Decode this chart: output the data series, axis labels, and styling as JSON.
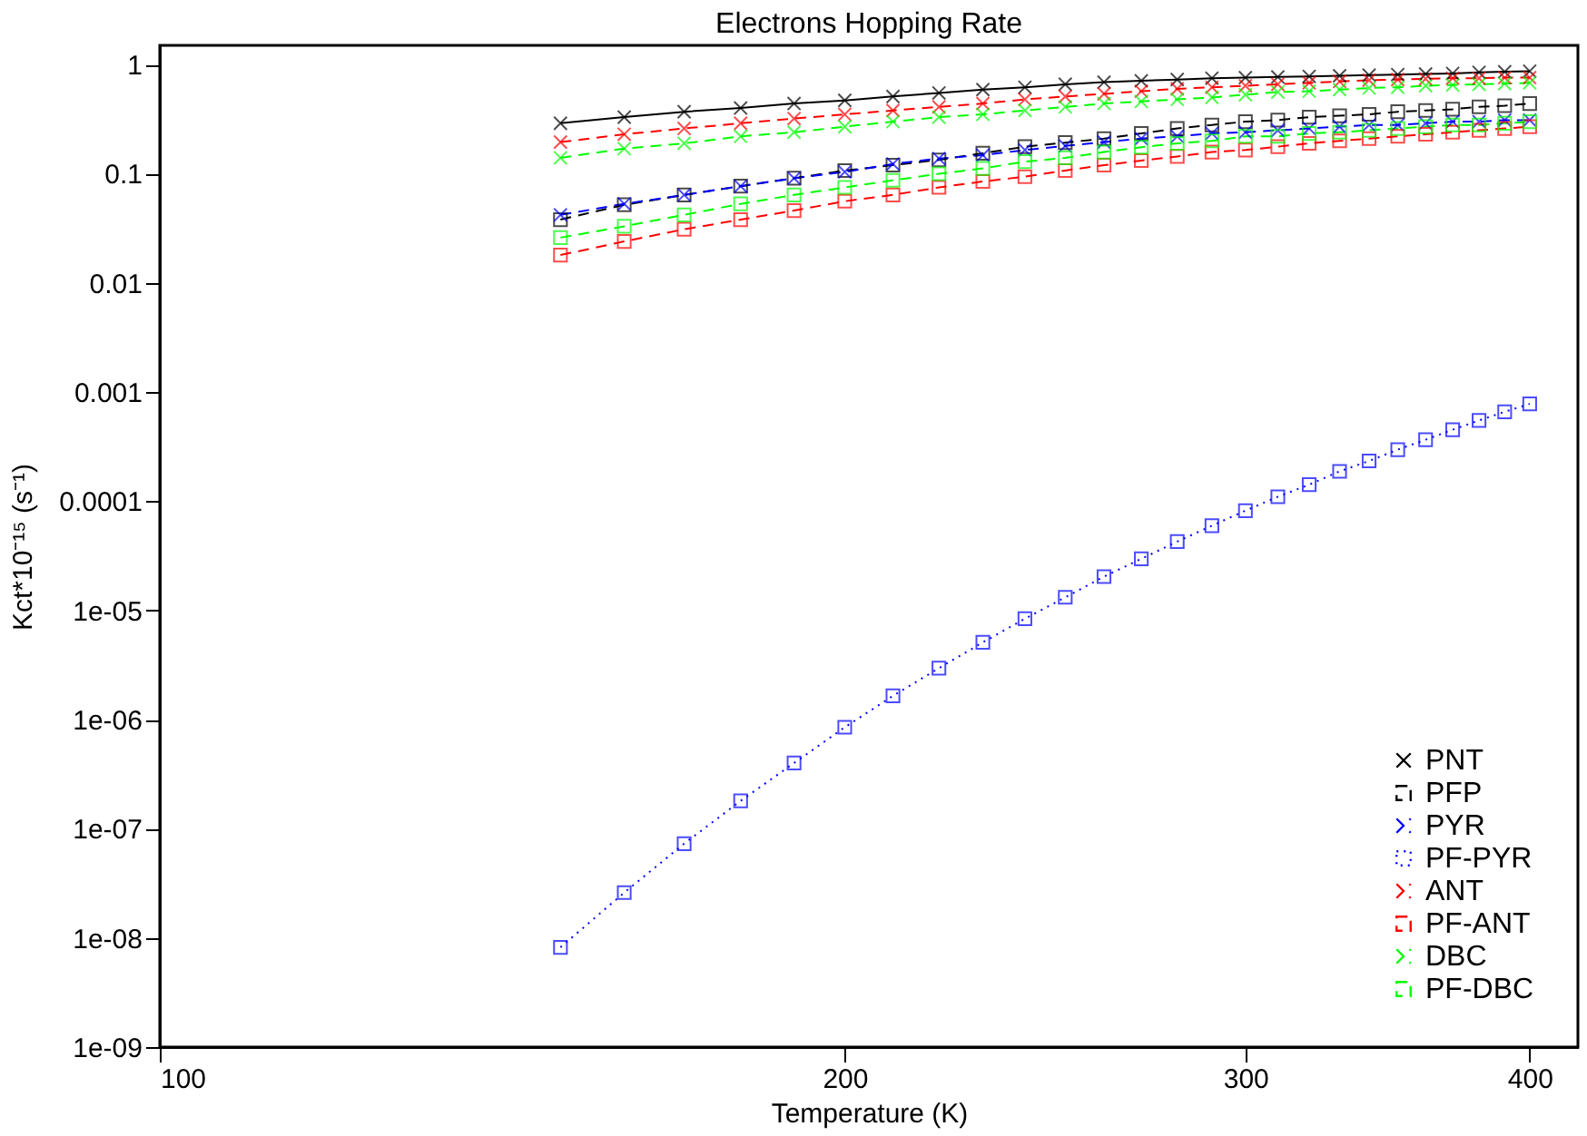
{
  "chart_data": {
    "type": "line",
    "title": "Electrons Hopping Rate",
    "xlabel": "Temperature (K)",
    "ylabel": "Kct*10⁻¹⁵ (s⁻¹)",
    "x": [
      150,
      160,
      170,
      180,
      190,
      200,
      210,
      220,
      230,
      240,
      250,
      260,
      270,
      280,
      290,
      300,
      310,
      320,
      330,
      340,
      350,
      360,
      370,
      380,
      390,
      400
    ],
    "log": "xy",
    "xlim": [
      100,
      420
    ],
    "xticks": [
      100,
      200,
      300,
      400
    ],
    "ylim": [
      1e-09,
      1.5
    ],
    "yticks": [
      1,
      0.1,
      0.01,
      0.001,
      0.0001,
      {
        "value": 1e-05,
        "label": "1e-05"
      },
      {
        "value": 1e-06,
        "label": "1e-06"
      },
      {
        "value": 1e-07,
        "label": "1e-07"
      },
      {
        "value": 1e-08,
        "label": "1e-08"
      },
      {
        "value": 1e-09,
        "label": "1e-09"
      }
    ],
    "grid": false,
    "legend": "bottom right",
    "series": [
      {
        "name": "PNT",
        "color": "#000000",
        "marker": "cross",
        "line_style": "solid",
        "values": [
          0.29,
          0.33,
          0.37,
          0.4,
          0.44,
          0.47,
          0.51,
          0.55,
          0.59,
          0.62,
          0.66,
          0.69,
          0.71,
          0.73,
          0.75,
          0.76,
          0.77,
          0.78,
          0.79,
          0.8,
          0.81,
          0.82,
          0.83,
          0.85,
          0.86,
          0.87
        ]
      },
      {
        "name": "PFP",
        "color": "#000000",
        "marker": "square",
        "line_style": "dashed",
        "values": [
          0.038,
          0.052,
          0.064,
          0.077,
          0.091,
          0.107,
          0.12,
          0.134,
          0.154,
          0.177,
          0.193,
          0.21,
          0.234,
          0.26,
          0.28,
          0.3,
          0.31,
          0.33,
          0.34,
          0.35,
          0.37,
          0.38,
          0.39,
          0.41,
          0.42,
          0.44
        ]
      },
      {
        "name": "PYR",
        "color": "#0000ff",
        "marker": "cross",
        "line_style": "dashed",
        "values": [
          0.042,
          0.053,
          0.064,
          0.077,
          0.091,
          0.104,
          0.123,
          0.138,
          0.148,
          0.165,
          0.18,
          0.195,
          0.21,
          0.22,
          0.234,
          0.24,
          0.25,
          0.26,
          0.27,
          0.28,
          0.28,
          0.29,
          0.3,
          0.3,
          0.31,
          0.31
        ]
      },
      {
        "name": "PF-PYR",
        "color": "#0000ff",
        "marker": "square",
        "line_style": "dotted",
        "values": [
          8.2e-09,
          2.6e-08,
          7.3e-08,
          1.8e-07,
          4e-07,
          8.5e-07,
          1.65e-06,
          2.96e-06,
          5.1e-06,
          8.4e-06,
          1.32e-05,
          2.04e-05,
          2.97e-05,
          4.27e-05,
          5.97e-05,
          8.2e-05,
          0.00011,
          0.000142,
          0.000188,
          0.000234,
          0.000297,
          0.000366,
          0.000452,
          0.00055,
          0.00066,
          0.00078
        ]
      },
      {
        "name": "ANT",
        "color": "#ff0000",
        "marker": "cross",
        "line_style": "dashed",
        "values": [
          0.195,
          0.23,
          0.26,
          0.29,
          0.32,
          0.35,
          0.38,
          0.41,
          0.44,
          0.48,
          0.51,
          0.54,
          0.57,
          0.6,
          0.62,
          0.64,
          0.66,
          0.68,
          0.7,
          0.72,
          0.73,
          0.74,
          0.75,
          0.75,
          0.76,
          0.76
        ]
      },
      {
        "name": "PF-ANT",
        "color": "#ff0000",
        "marker": "square",
        "line_style": "dashed",
        "values": [
          0.018,
          0.024,
          0.031,
          0.038,
          0.046,
          0.056,
          0.064,
          0.075,
          0.085,
          0.094,
          0.107,
          0.12,
          0.132,
          0.144,
          0.158,
          0.165,
          0.177,
          0.19,
          0.2,
          0.21,
          0.22,
          0.23,
          0.24,
          0.25,
          0.26,
          0.27
        ]
      },
      {
        "name": "DBC",
        "color": "#00ff00",
        "marker": "cross",
        "line_style": "dashed",
        "values": [
          0.14,
          0.17,
          0.19,
          0.22,
          0.24,
          0.27,
          0.3,
          0.33,
          0.35,
          0.38,
          0.41,
          0.44,
          0.46,
          0.48,
          0.5,
          0.53,
          0.56,
          0.57,
          0.59,
          0.61,
          0.62,
          0.64,
          0.65,
          0.66,
          0.67,
          0.68
        ]
      },
      {
        "name": "PF-DBC",
        "color": "#00ff00",
        "marker": "square",
        "line_style": "dashed",
        "values": [
          0.026,
          0.033,
          0.042,
          0.053,
          0.064,
          0.075,
          0.087,
          0.1,
          0.112,
          0.129,
          0.14,
          0.158,
          0.175,
          0.19,
          0.2,
          0.22,
          0.22,
          0.234,
          0.24,
          0.25,
          0.26,
          0.27,
          0.28,
          0.28,
          0.29,
          0.3
        ]
      }
    ]
  }
}
